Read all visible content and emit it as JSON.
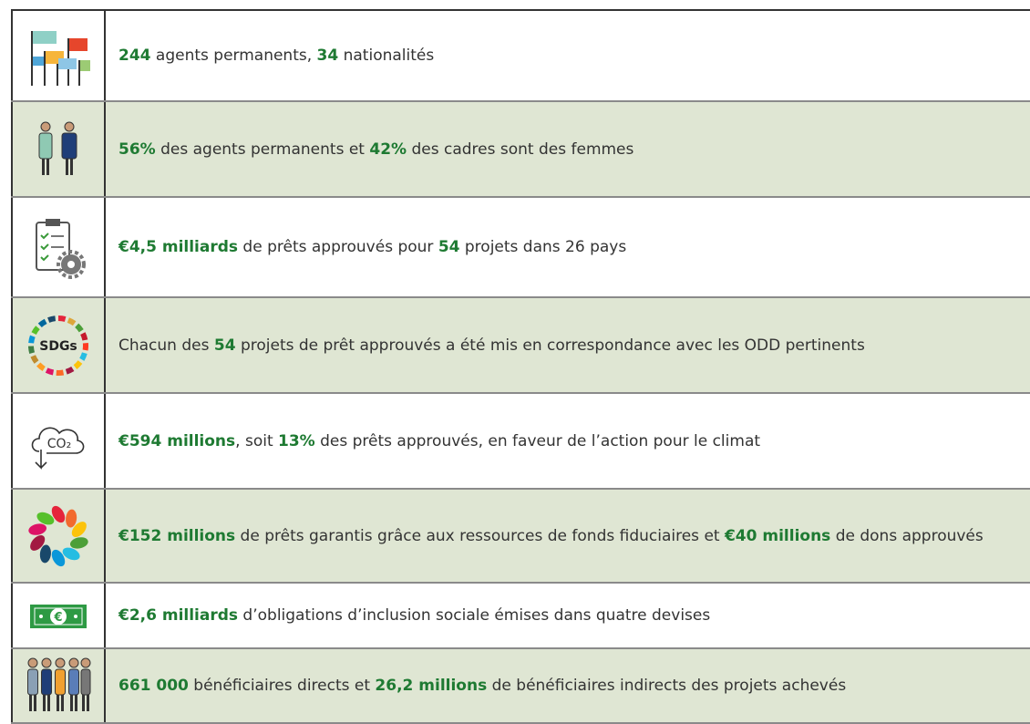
{
  "table": {
    "rows": [
      {
        "parts": [
          {
            "text": "244",
            "strong": true
          },
          {
            "text": " agents permanents, "
          },
          {
            "text": "34",
            "strong": true
          },
          {
            "text": " nationalités"
          }
        ]
      },
      {
        "parts": [
          {
            "text": "56%",
            "strong": true
          },
          {
            "text": " des agents permanents et "
          },
          {
            "text": "42%",
            "strong": true
          },
          {
            "text": " des cadres sont des femmes"
          }
        ]
      },
      {
        "parts": [
          {
            "text": "€4,5 milliards",
            "strong": true
          },
          {
            "text": " de prêts approuvés pour "
          },
          {
            "text": "54",
            "strong": true
          },
          {
            "text": " projets dans 26 pays"
          }
        ]
      },
      {
        "icon_label": "SDGs",
        "parts": [
          {
            "text": "Chacun des "
          },
          {
            "text": "54",
            "strong": true
          },
          {
            "text": " projets de prêt approuvés a été mis en correspondance avec les ODD pertinents"
          }
        ]
      },
      {
        "icon_label": "CO₂",
        "parts": [
          {
            "text": "€594 millions",
            "strong": true
          },
          {
            "text": ", soit "
          },
          {
            "text": "13%",
            "strong": true
          },
          {
            "text": " des prêts approuvés, en faveur de l’action pour le climat"
          }
        ]
      },
      {
        "parts": [
          {
            "text": "€152 millions",
            "strong": true
          },
          {
            "text": " de prêts garantis grâce aux ressources de fonds fiduciaires et "
          },
          {
            "text": "€40 millions",
            "strong": true
          },
          {
            "text": " de dons approuvés"
          }
        ]
      },
      {
        "icon_label": "€",
        "parts": [
          {
            "text": "€2,6 milliards",
            "strong": true
          },
          {
            "text": " d’obligations d’inclusion sociale émises dans quatre devises"
          }
        ]
      },
      {
        "parts": [
          {
            "text": "661 000",
            "strong": true
          },
          {
            "text": " bénéficiaires directs et "
          },
          {
            "text": "26,2 millions",
            "strong": true
          },
          {
            "text": " de bénéficiaires indirects des projets achevés"
          }
        ]
      }
    ]
  }
}
